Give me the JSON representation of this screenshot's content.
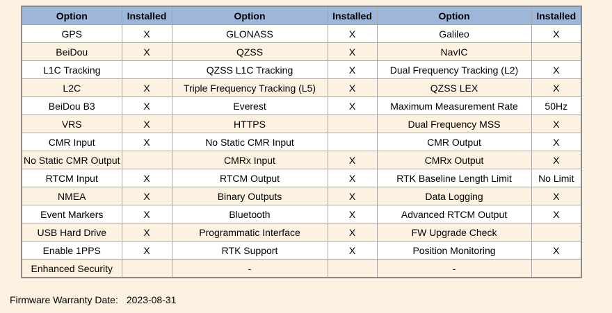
{
  "table": {
    "headers": [
      "Option",
      "Installed",
      "Option",
      "Installed",
      "Option",
      "Installed"
    ],
    "rows": [
      [
        "GPS",
        "X",
        "GLONASS",
        "X",
        "Galileo",
        "X"
      ],
      [
        "BeiDou",
        "X",
        "QZSS",
        "X",
        "NavIC",
        ""
      ],
      [
        "L1C Tracking",
        "",
        "QZSS L1C Tracking",
        "X",
        "Dual Frequency Tracking (L2)",
        "X"
      ],
      [
        "L2C",
        "X",
        "Triple Frequency Tracking (L5)",
        "X",
        "QZSS LEX",
        "X"
      ],
      [
        "BeiDou B3",
        "X",
        "Everest",
        "X",
        "Maximum Measurement Rate",
        "50Hz"
      ],
      [
        "VRS",
        "X",
        "HTTPS",
        "",
        "Dual Frequency MSS",
        "X"
      ],
      [
        "CMR Input",
        "X",
        "No Static CMR Input",
        "",
        "CMR Output",
        "X"
      ],
      [
        "No Static CMR Output",
        "",
        "CMRx Input",
        "X",
        "CMRx Output",
        "X"
      ],
      [
        "RTCM Input",
        "X",
        "RTCM Output",
        "X",
        "RTK Baseline Length Limit",
        "No Limit"
      ],
      [
        "NMEA",
        "X",
        "Binary Outputs",
        "X",
        "Data Logging",
        "X"
      ],
      [
        "Event Markers",
        "X",
        "Bluetooth",
        "X",
        "Advanced RTCM Output",
        "X"
      ],
      [
        "USB Hard Drive",
        "X",
        "Programmatic Interface",
        "X",
        "FW Upgrade Check",
        ""
      ],
      [
        "Enable 1PPS",
        "X",
        "RTK Support",
        "X",
        "Position Monitoring",
        "X"
      ],
      [
        "Enhanced Security",
        "",
        "-",
        "",
        "-",
        ""
      ]
    ]
  },
  "footer": {
    "label": "Firmware Warranty Date:",
    "value": "2023-08-31"
  },
  "colors": {
    "header_bg": "#9db6d9",
    "row_bg": "#ffffff",
    "row_alt_bg": "#fdf2e1",
    "page_bg": "#fdf2e1",
    "inner_border": "#a6a6a6",
    "outer_border": "#8a8a8a"
  }
}
